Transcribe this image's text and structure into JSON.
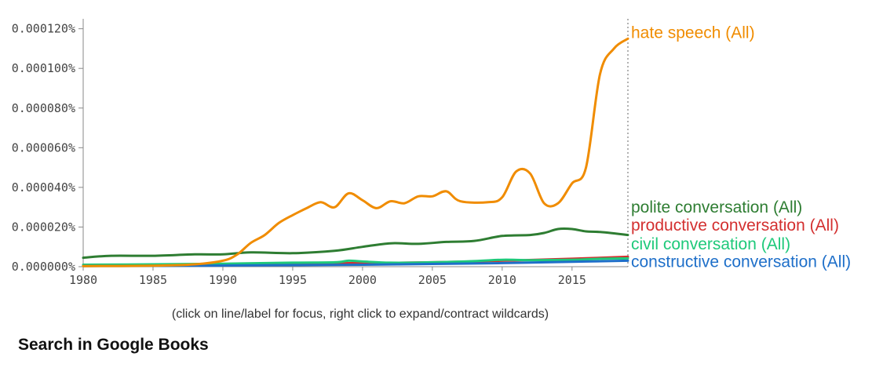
{
  "chart_data": {
    "type": "line",
    "xlim": [
      1980,
      2019
    ],
    "ylim": [
      0,
      0.000125
    ],
    "x_ticks": [
      1980,
      1985,
      1990,
      1995,
      2000,
      2005,
      2010,
      2015
    ],
    "y_ticks": [
      {
        "value": 0,
        "label": "0.000000%"
      },
      {
        "value": 2e-05,
        "label": "0.000020%"
      },
      {
        "value": 4e-05,
        "label": "0.000040%"
      },
      {
        "value": 6e-05,
        "label": "0.000060%"
      },
      {
        "value": 8e-05,
        "label": "0.000080%"
      },
      {
        "value": 0.0001,
        "label": "0.000100%"
      },
      {
        "value": 0.00012,
        "label": "0.000120%"
      }
    ],
    "series": [
      {
        "name": "polite conversation (All)",
        "color": "#2e7d32",
        "points": [
          [
            1980,
            4.5e-06
          ],
          [
            1982,
            5.5e-06
          ],
          [
            1985,
            5.5e-06
          ],
          [
            1988,
            6.2e-06
          ],
          [
            1990,
            6.2e-06
          ],
          [
            1992,
            7.2e-06
          ],
          [
            1995,
            6.8e-06
          ],
          [
            1998,
            8e-06
          ],
          [
            2000,
            1e-05
          ],
          [
            2002,
            1.18e-05
          ],
          [
            2004,
            1.15e-05
          ],
          [
            2006,
            1.25e-05
          ],
          [
            2008,
            1.3e-05
          ],
          [
            2010,
            1.55e-05
          ],
          [
            2012,
            1.6e-05
          ],
          [
            2013,
            1.7e-05
          ],
          [
            2014,
            1.9e-05
          ],
          [
            2015,
            1.9e-05
          ],
          [
            2016,
            1.78e-05
          ],
          [
            2017,
            1.75e-05
          ],
          [
            2019,
            1.6e-05
          ]
        ]
      },
      {
        "name": "productive conversation (All)",
        "color": "#d32f2f",
        "points": [
          [
            1980,
            5e-07
          ],
          [
            1985,
            8e-07
          ],
          [
            1990,
            1e-06
          ],
          [
            1995,
            1.5e-06
          ],
          [
            2000,
            1.8e-06
          ],
          [
            2005,
            2.2e-06
          ],
          [
            2010,
            3e-06
          ],
          [
            2015,
            4e-06
          ],
          [
            2019,
            5e-06
          ]
        ]
      },
      {
        "name": "civil conversation (All)",
        "color": "#1ec97a",
        "points": [
          [
            1980,
            1e-06
          ],
          [
            1985,
            1.2e-06
          ],
          [
            1990,
            1.5e-06
          ],
          [
            1995,
            2e-06
          ],
          [
            1998,
            2.2e-06
          ],
          [
            1999,
            3e-06
          ],
          [
            2000,
            2.6e-06
          ],
          [
            2002,
            2e-06
          ],
          [
            2005,
            2.2e-06
          ],
          [
            2008,
            2.8e-06
          ],
          [
            2010,
            3.5e-06
          ],
          [
            2012,
            3.3e-06
          ],
          [
            2015,
            3.5e-06
          ],
          [
            2017,
            4e-06
          ],
          [
            2019,
            4.2e-06
          ]
        ]
      },
      {
        "name": "constructive conversation (All)",
        "color": "#1e6fc9",
        "points": [
          [
            1980,
            3e-07
          ],
          [
            1985,
            4e-07
          ],
          [
            1990,
            6e-07
          ],
          [
            1995,
            8e-07
          ],
          [
            2000,
            1e-06
          ],
          [
            2005,
            1.4e-06
          ],
          [
            2010,
            1.8e-06
          ],
          [
            2015,
            2.5e-06
          ],
          [
            2019,
            3e-06
          ]
        ]
      },
      {
        "name": "hate speech (All)",
        "color": "#f08c00",
        "points": [
          [
            1980,
            3e-07
          ],
          [
            1985,
            5e-07
          ],
          [
            1988,
            1.2e-06
          ],
          [
            1990,
            3e-06
          ],
          [
            1991,
            6e-06
          ],
          [
            1992,
            1.2e-05
          ],
          [
            1993,
            1.6e-05
          ],
          [
            1994,
            2.2e-05
          ],
          [
            1995,
            2.6e-05
          ],
          [
            1996,
            2.95e-05
          ],
          [
            1997,
            3.25e-05
          ],
          [
            1998,
            3e-05
          ],
          [
            1999,
            3.7e-05
          ],
          [
            2000,
            3.35e-05
          ],
          [
            2001,
            2.95e-05
          ],
          [
            2002,
            3.3e-05
          ],
          [
            2003,
            3.2e-05
          ],
          [
            2004,
            3.55e-05
          ],
          [
            2005,
            3.55e-05
          ],
          [
            2006,
            3.8e-05
          ],
          [
            2007,
            3.3e-05
          ],
          [
            2009,
            3.25e-05
          ],
          [
            2010,
            3.5e-05
          ],
          [
            2011,
            4.8e-05
          ],
          [
            2012,
            4.7e-05
          ],
          [
            2013,
            3.2e-05
          ],
          [
            2014,
            3.2e-05
          ],
          [
            2015,
            4.2e-05
          ],
          [
            2016,
            5e-05
          ],
          [
            2017,
            9.7e-05
          ],
          [
            2018,
            0.00011
          ],
          [
            2019,
            0.000115
          ]
        ]
      }
    ],
    "labels": [
      {
        "name": "hate speech (All)",
        "color": "#f08c00",
        "value": 0.000118
      },
      {
        "name": "polite conversation (All)",
        "color": "#2e7d32",
        "value": 3e-05
      },
      {
        "name": "productive conversation (All)",
        "color": "#d32f2f",
        "value": 2.1e-05
      },
      {
        "name": "civil conversation (All)",
        "color": "#1ec97a",
        "value": 1.15e-05
      },
      {
        "name": "constructive conversation (All)",
        "color": "#1e6fc9",
        "value": 2.5e-06
      }
    ]
  },
  "hint": "(click on line/label for focus, right click to expand/contract wildcards)",
  "books_link": "Search in Google Books"
}
